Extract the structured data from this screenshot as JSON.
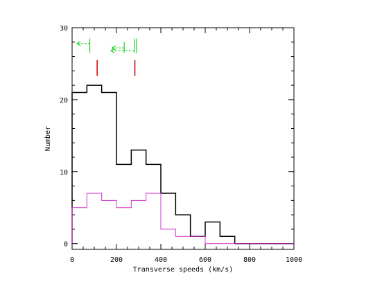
{
  "chart_data": {
    "type": "histogram",
    "title": "",
    "xlabel": "Transverse speeds (km/s)",
    "ylabel": "Number",
    "xlim": [
      0,
      1000
    ],
    "ylim": [
      -0.8,
      30
    ],
    "xticks": [
      0,
      200,
      400,
      600,
      800,
      1000
    ],
    "xtick_labels": [
      "0",
      "200",
      "400",
      "600",
      "800",
      "1000"
    ],
    "yticks": [
      0,
      10,
      20,
      30
    ],
    "ytick_labels": [
      "0",
      "10",
      "20",
      "30"
    ],
    "grid": false,
    "bin_edges": [
      0,
      66.7,
      133.3,
      200,
      266.7,
      333.3,
      400,
      466.7,
      533.3,
      600,
      666.7,
      733.3,
      800,
      866.7,
      933.3,
      1000
    ],
    "series": [
      {
        "color": "#000000",
        "values": [
          21,
          22,
          21,
          11,
          13,
          11,
          7,
          4,
          1,
          3,
          1,
          0,
          0,
          0,
          0
        ]
      },
      {
        "color": "#cc33cc",
        "values": [
          5,
          7,
          6,
          5,
          6,
          7,
          2,
          1,
          1,
          0,
          0,
          0,
          0,
          0,
          0
        ]
      }
    ],
    "annotations": [
      {
        "kind": "red-marker",
        "color": "#cc0000",
        "x": 113,
        "y_from": 23.3,
        "y_to": 25.5
      },
      {
        "kind": "red-marker",
        "color": "#cc0000",
        "x": 283,
        "y_from": 23.3,
        "y_to": 25.5
      },
      {
        "kind": "green-upper-limit",
        "color": "#00cc00",
        "x": 80,
        "y_from": 26.5,
        "y_to": 28.5,
        "arrow_to": 22,
        "arrow_y": 27.8
      },
      {
        "kind": "green-upper-limit",
        "color": "#00cc00",
        "x": 235,
        "y_from": 26.5,
        "y_to": 28.0,
        "arrow_to": 180,
        "arrow_y": 27.2
      },
      {
        "kind": "green-upper-limit",
        "color": "#00cc00",
        "x": 280,
        "y_from": 26.5,
        "y_to": 28.5,
        "arrow_to": 175,
        "arrow_y": 26.8
      },
      {
        "kind": "green-bar",
        "color": "#00cc00",
        "x": 290,
        "y_from": 26.5,
        "y_to": 28.5
      }
    ]
  }
}
